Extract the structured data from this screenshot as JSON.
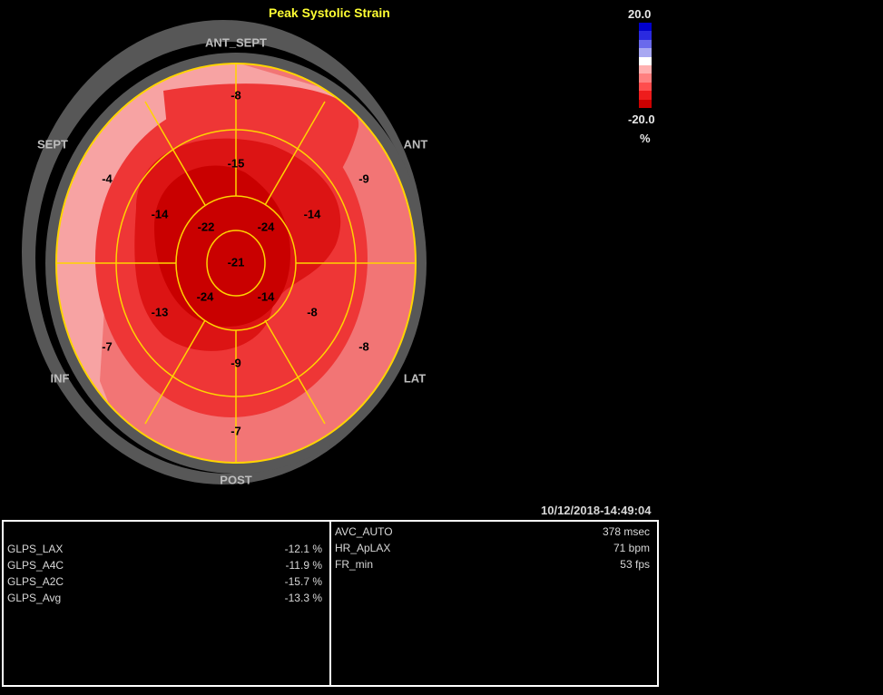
{
  "title": "Peak Systolic Strain",
  "wall_labels": {
    "ant_sept": "ANT_SEPT",
    "ant": "ANT",
    "lat": "LAT",
    "post": "POST",
    "inf": "INF",
    "sept": "SEPT"
  },
  "segments": {
    "basal": [
      "-8",
      "-9",
      "-8",
      "-7",
      "-7",
      "-4"
    ],
    "mid": [
      "-15",
      "-14",
      "-8",
      "-9",
      "-13",
      "-14"
    ],
    "apical": [
      "-24",
      "-14",
      "-24",
      "-22"
    ],
    "apex": "-21"
  },
  "color_scale": {
    "max": "20.0",
    "min": "-20.0",
    "unit": "%",
    "colors": [
      "#0000cc",
      "#2a2ae0",
      "#6a6aec",
      "#a8a8f2",
      "#ffffff",
      "#ffb0b0",
      "#ff8080",
      "#ff4d4d",
      "#ee1c1c",
      "#cc0000"
    ]
  },
  "timestamp": "10/12/2018-14:49:04",
  "glps": [
    {
      "label": "GLPS_LAX",
      "value": "-12.1 %"
    },
    {
      "label": "GLPS_A4C",
      "value": "-11.9 %"
    },
    {
      "label": "GLPS_A2C",
      "value": "-15.7 %"
    },
    {
      "label": "GLPS_Avg",
      "value": "-13.3 %"
    }
  ],
  "measurements": [
    {
      "label": "AVC_AUTO",
      "value": "378 msec"
    },
    {
      "label": "HR_ApLAX",
      "value": "71 bpm"
    },
    {
      "label": "FR_min",
      "value": "53 fps"
    }
  ]
}
